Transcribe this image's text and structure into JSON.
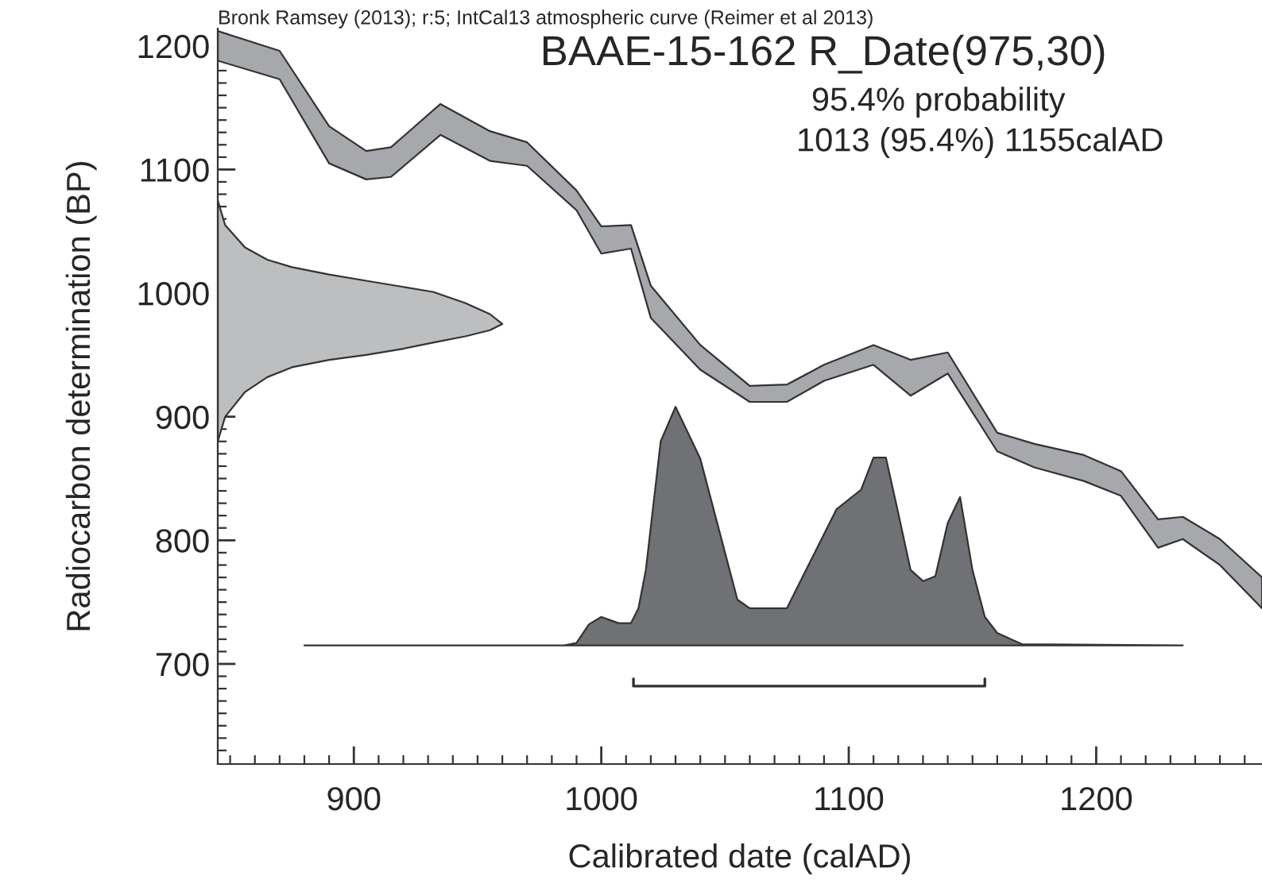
{
  "chart_data": {
    "type": "line",
    "title": "BAAE-15-162 R_Date(975,30)",
    "subtitle": "Bronk Ramsey (2013); r:5; IntCal13 atmospheric curve (Reimer et al 2013)",
    "annotations": [
      "95.4% probability",
      "1013 (95.4%) 1155calAD"
    ],
    "xlabel": "Calibrated date (calAD)",
    "ylabel": "Radiocarbon determination (BP)",
    "xlim": [
      845,
      1267
    ],
    "ylim": [
      619,
      1214
    ],
    "xticks": [
      {
        "value": 850,
        "label": null
      },
      {
        "value": 860,
        "label": null
      },
      {
        "value": 870,
        "label": null
      },
      {
        "value": 880,
        "label": null
      },
      {
        "value": 890,
        "label": null
      },
      900,
      {
        "value": 910,
        "label": null
      },
      {
        "value": 920,
        "label": null
      },
      {
        "value": 930,
        "label": null
      },
      {
        "value": 940,
        "label": null
      },
      {
        "value": 950,
        "label": null
      },
      {
        "value": 960,
        "label": null
      },
      {
        "value": 970,
        "label": null
      },
      {
        "value": 980,
        "label": null
      },
      {
        "value": 990,
        "label": null
      },
      1000,
      {
        "value": 1010,
        "label": null
      },
      {
        "value": 1020,
        "label": null
      },
      {
        "value": 1030,
        "label": null
      },
      {
        "value": 1040,
        "label": null
      },
      {
        "value": 1050,
        "label": null
      },
      {
        "value": 1060,
        "label": null
      },
      {
        "value": 1070,
        "label": null
      },
      {
        "value": 1080,
        "label": null
      },
      {
        "value": 1090,
        "label": null
      },
      1100,
      {
        "value": 1110,
        "label": null
      },
      {
        "value": 1120,
        "label": null
      },
      {
        "value": 1130,
        "label": null
      },
      {
        "value": 1140,
        "label": null
      },
      {
        "value": 1150,
        "label": null
      },
      {
        "value": 1160,
        "label": null
      },
      {
        "value": 1170,
        "label": null
      },
      {
        "value": 1180,
        "label": null
      },
      {
        "value": 1190,
        "label": null
      },
      1200,
      {
        "value": 1210,
        "label": null
      },
      {
        "value": 1220,
        "label": null
      },
      {
        "value": 1230,
        "label": null
      },
      {
        "value": 1240,
        "label": null
      },
      {
        "value": 1250,
        "label": null
      },
      {
        "value": 1260,
        "label": null
      }
    ],
    "yticks": [
      {
        "value": 630,
        "label": null
      },
      {
        "value": 640,
        "label": null
      },
      {
        "value": 650,
        "label": null
      },
      {
        "value": 660,
        "label": null
      },
      {
        "value": 670,
        "label": null
      },
      {
        "value": 680,
        "label": null
      },
      {
        "value": 690,
        "label": null
      },
      700,
      {
        "value": 710,
        "label": null
      },
      {
        "value": 720,
        "label": null
      },
      {
        "value": 730,
        "label": null
      },
      {
        "value": 740,
        "label": null
      },
      {
        "value": 750,
        "label": null
      },
      {
        "value": 760,
        "label": null
      },
      {
        "value": 770,
        "label": null
      },
      {
        "value": 780,
        "label": null
      },
      {
        "value": 790,
        "label": null
      },
      800,
      {
        "value": 810,
        "label": null
      },
      {
        "value": 820,
        "label": null
      },
      {
        "value": 830,
        "label": null
      },
      {
        "value": 840,
        "label": null
      },
      {
        "value": 850,
        "label": null
      },
      {
        "value": 860,
        "label": null
      },
      {
        "value": 870,
        "label": null
      },
      {
        "value": 880,
        "label": null
      },
      {
        "value": 890,
        "label": null
      },
      900,
      {
        "value": 910,
        "label": null
      },
      {
        "value": 920,
        "label": null
      },
      {
        "value": 930,
        "label": null
      },
      {
        "value": 940,
        "label": null
      },
      {
        "value": 950,
        "label": null
      },
      {
        "value": 960,
        "label": null
      },
      {
        "value": 970,
        "label": null
      },
      {
        "value": 980,
        "label": null
      },
      {
        "value": 990,
        "label": null
      },
      1000,
      {
        "value": 1010,
        "label": null
      },
      {
        "value": 1020,
        "label": null
      },
      {
        "value": 1030,
        "label": null
      },
      {
        "value": 1040,
        "label": null
      },
      {
        "value": 1050,
        "label": null
      },
      {
        "value": 1060,
        "label": null
      },
      {
        "value": 1070,
        "label": null
      },
      {
        "value": 1080,
        "label": null
      },
      {
        "value": 1090,
        "label": null
      },
      1100,
      {
        "value": 1110,
        "label": null
      },
      {
        "value": 1120,
        "label": null
      },
      {
        "value": 1130,
        "label": null
      },
      {
        "value": 1140,
        "label": null
      },
      {
        "value": 1150,
        "label": null
      },
      {
        "value": 1160,
        "label": null
      },
      {
        "value": 1170,
        "label": null
      },
      {
        "value": 1180,
        "label": null
      },
      {
        "value": 1190,
        "label": null
      },
      1200,
      {
        "value": 1210,
        "label": null
      }
    ],
    "series": [
      {
        "color": "#a7a8ab",
        "x": [
          845,
          870,
          890,
          905,
          915,
          935,
          955,
          970,
          990,
          1000,
          1012,
          1020,
          1040,
          1060,
          1075,
          1090,
          1110,
          1125,
          1140,
          1160,
          1175,
          1195,
          1210,
          1225,
          1235,
          1250,
          1267
        ],
        "values": [
          null,
          null,
          null,
          null,
          null,
          null,
          null,
          null,
          null,
          null,
          null,
          null,
          null,
          null,
          null,
          null,
          null,
          null,
          null,
          null,
          null,
          null,
          null,
          null,
          null,
          null,
          null
        ],
        "upper": [
          1212,
          1196,
          1135,
          1115,
          1118,
          1153,
          1131,
          1122,
          1083,
          1054,
          1055,
          1006,
          958,
          925,
          926,
          942,
          958,
          946,
          952,
          887,
          878,
          869,
          856,
          817,
          819,
          801,
          770
        ],
        "lower": [
          1188,
          1173,
          1105,
          1092,
          1094,
          1128,
          1107,
          1103,
          1067,
          1032,
          1036,
          980,
          938,
          912,
          912,
          929,
          942,
          917,
          935,
          872,
          859,
          848,
          836,
          794,
          801,
          780,
          745
        ]
      },
      {
        "color": "#bdbec0",
        "x": [
          845,
          848,
          856,
          865,
          875,
          890,
          905,
          920,
          932,
          945,
          955,
          960
        ],
        "values": [
          null,
          null,
          null,
          null,
          null,
          null,
          null,
          null,
          null,
          null,
          null,
          null
        ],
        "upper": [
          1075,
          1055,
          1037,
          1027,
          1021,
          1015,
          1010,
          1005,
          1001,
          992,
          983,
          975
        ],
        "lower": [
          880,
          900,
          920,
          932,
          940,
          946,
          950,
          955,
          960,
          965,
          970,
          975
        ]
      },
      {
        "color": "#707174",
        "x": [
          880,
          985,
          990,
          995,
          1000,
          1007,
          1012,
          1015,
          1018,
          1024,
          1030,
          1040,
          1050,
          1055,
          1060,
          1075,
          1085,
          1095,
          1105,
          1110,
          1115,
          1120,
          1125,
          1130,
          1135,
          1140,
          1145,
          1150,
          1155,
          1160,
          1170,
          1235
        ],
        "values": [
          null,
          null,
          null,
          null,
          null,
          null,
          null,
          null,
          null,
          null,
          null,
          null,
          null,
          null,
          null,
          null,
          null,
          null,
          null,
          null,
          null,
          null,
          null,
          null,
          null,
          null,
          null,
          null,
          null,
          null,
          null,
          null
        ],
        "upper": [
          715,
          715,
          717,
          732,
          738,
          733,
          733,
          745,
          776,
          880,
          908,
          866,
          790,
          752,
          745,
          745,
          785,
          825,
          841,
          867,
          867,
          822,
          776,
          767,
          771,
          814,
          835,
          776,
          738,
          725,
          716,
          715
        ],
        "lower": [
          715,
          715,
          715,
          715,
          715,
          715,
          715,
          715,
          715,
          715,
          715,
          715,
          715,
          715,
          715,
          715,
          715,
          715,
          715,
          715,
          715,
          715,
          715,
          715,
          715,
          715,
          715,
          715,
          715,
          715,
          715,
          715
        ]
      },
      {
        "color": "#303030",
        "x": [
          1013,
          1013,
          1155,
          1155
        ],
        "values": [
          688,
          682,
          682,
          688
        ]
      }
    ]
  }
}
